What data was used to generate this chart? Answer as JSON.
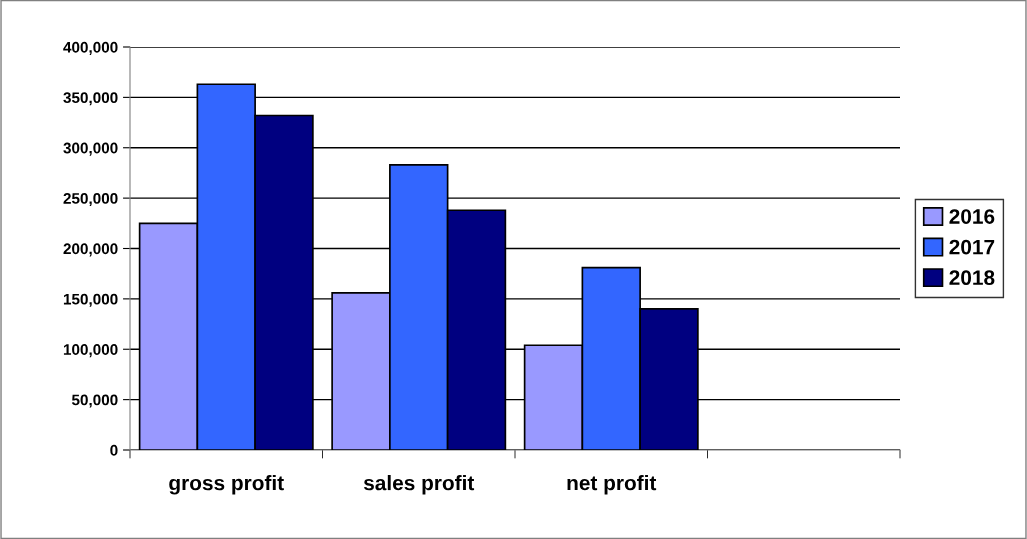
{
  "chart_data": {
    "type": "bar",
    "categories": [
      "gross profit",
      "sales profit",
      "net profit",
      null
    ],
    "series": [
      {
        "name": "2016",
        "color": "#9999ff",
        "values": [
          225000,
          156000,
          104000,
          null
        ]
      },
      {
        "name": "2017",
        "color": "#3366ff",
        "values": [
          363000,
          283000,
          181000,
          null
        ]
      },
      {
        "name": "2018",
        "color": "#000080",
        "values": [
          332000,
          238000,
          140000,
          null
        ]
      }
    ],
    "ylim": [
      0,
      400000
    ],
    "yticks": [
      {
        "value": 0,
        "label": "0"
      },
      {
        "value": 50000,
        "label": "50,000"
      },
      {
        "value": 100000,
        "label": "100,000"
      },
      {
        "value": 150000,
        "label": "150,000"
      },
      {
        "value": 200000,
        "label": "200,000"
      },
      {
        "value": 250000,
        "label": "250,000"
      },
      {
        "value": 300000,
        "label": "300,000"
      },
      {
        "value": 350000,
        "label": "350,000"
      },
      {
        "value": 400000,
        "label": "400,000"
      }
    ],
    "grid": "y",
    "legend": "right"
  }
}
